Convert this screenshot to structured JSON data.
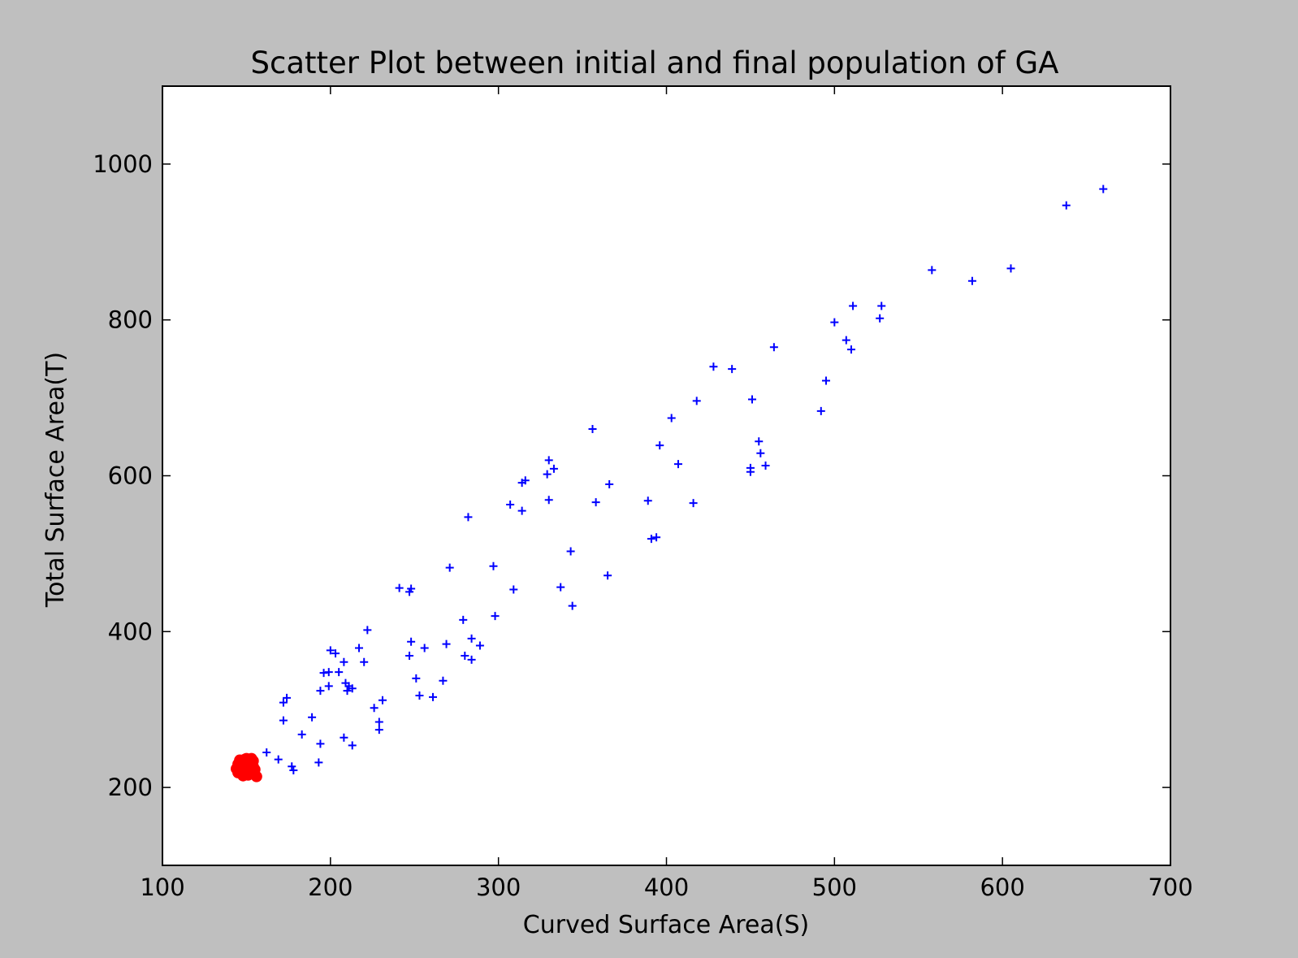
{
  "chart_data": {
    "type": "scatter",
    "title": "Scatter Plot between initial and final population of GA",
    "xlabel": "Curved Surface Area(S)",
    "ylabel": "Total Surface Area(T)",
    "xlim": [
      100,
      700
    ],
    "ylim": [
      100,
      1100
    ],
    "xticks": [
      100,
      200,
      300,
      400,
      500,
      600,
      700
    ],
    "yticks": [
      200,
      400,
      600,
      800,
      1000
    ],
    "xtick_labels": [
      "100",
      "200",
      "300",
      "400",
      "500",
      "600",
      "700"
    ],
    "ytick_labels": [
      "200",
      "400",
      "600",
      "800",
      "1000"
    ],
    "grid": false,
    "series": [
      {
        "marker": "plus",
        "color": "#0000ff",
        "points": [
          [
            660,
            968
          ],
          [
            638,
            947
          ],
          [
            605,
            866
          ],
          [
            582,
            850
          ],
          [
            558,
            864
          ],
          [
            528,
            818
          ],
          [
            527,
            802
          ],
          [
            511,
            818
          ],
          [
            510,
            762
          ],
          [
            507,
            774
          ],
          [
            500,
            797
          ],
          [
            495,
            722
          ],
          [
            492,
            683
          ],
          [
            464,
            765
          ],
          [
            459,
            613
          ],
          [
            456,
            629
          ],
          [
            455,
            644
          ],
          [
            451,
            698
          ],
          [
            450,
            610
          ],
          [
            450,
            605
          ],
          [
            439,
            737
          ],
          [
            428,
            740
          ],
          [
            418,
            696
          ],
          [
            416,
            565
          ],
          [
            407,
            615
          ],
          [
            403,
            674
          ],
          [
            396,
            639
          ],
          [
            394,
            521
          ],
          [
            391,
            519
          ],
          [
            389,
            568
          ],
          [
            366,
            589
          ],
          [
            365,
            472
          ],
          [
            358,
            566
          ],
          [
            356,
            660
          ],
          [
            344,
            433
          ],
          [
            343,
            503
          ],
          [
            337,
            457
          ],
          [
            333,
            609
          ],
          [
            330,
            620
          ],
          [
            330,
            569
          ],
          [
            329,
            602
          ],
          [
            316,
            594
          ],
          [
            314,
            591
          ],
          [
            314,
            555
          ],
          [
            309,
            454
          ],
          [
            307,
            563
          ],
          [
            298,
            420
          ],
          [
            297,
            484
          ],
          [
            289,
            382
          ],
          [
            284,
            391
          ],
          [
            284,
            364
          ],
          [
            282,
            547
          ],
          [
            280,
            369
          ],
          [
            279,
            415
          ],
          [
            271,
            482
          ],
          [
            269,
            384
          ],
          [
            267,
            337
          ],
          [
            261,
            316
          ],
          [
            256,
            379
          ],
          [
            253,
            318
          ],
          [
            251,
            340
          ],
          [
            248,
            387
          ],
          [
            248,
            455
          ],
          [
            247,
            369
          ],
          [
            247,
            451
          ],
          [
            241,
            456
          ],
          [
            231,
            312
          ],
          [
            229,
            284
          ],
          [
            229,
            274
          ],
          [
            226,
            302
          ],
          [
            222,
            402
          ],
          [
            220,
            361
          ],
          [
            217,
            379
          ],
          [
            213,
            327
          ],
          [
            213,
            254
          ],
          [
            211,
            330
          ],
          [
            210,
            324
          ],
          [
            209,
            334
          ],
          [
            208,
            264
          ],
          [
            208,
            361
          ],
          [
            205,
            348
          ],
          [
            203,
            372
          ],
          [
            200,
            376
          ],
          [
            199,
            330
          ],
          [
            199,
            348
          ],
          [
            196,
            347
          ],
          [
            194,
            324
          ],
          [
            194,
            256
          ],
          [
            193,
            232
          ],
          [
            189,
            290
          ],
          [
            183,
            268
          ],
          [
            178,
            222
          ],
          [
            177,
            227
          ],
          [
            174,
            315
          ],
          [
            172,
            309
          ],
          [
            172,
            286
          ],
          [
            169,
            236
          ],
          [
            162,
            245
          ]
        ]
      },
      {
        "marker": "circle",
        "color": "#ff0000",
        "points": [
          [
            144,
            224
          ],
          [
            145,
            219
          ],
          [
            145,
            230
          ],
          [
            146,
            226
          ],
          [
            146,
            235
          ],
          [
            147,
            221
          ],
          [
            147,
            228
          ],
          [
            148,
            232
          ],
          [
            148,
            218
          ],
          [
            149,
            225
          ],
          [
            149,
            236
          ],
          [
            150,
            222
          ],
          [
            150,
            229
          ],
          [
            151,
            233
          ],
          [
            151,
            219
          ],
          [
            152,
            226
          ],
          [
            152,
            236
          ],
          [
            153,
            222
          ],
          [
            153,
            230
          ],
          [
            154,
            234
          ],
          [
            154,
            227
          ],
          [
            155,
            223
          ],
          [
            156,
            214
          ],
          [
            148,
            215
          ],
          [
            151,
            216
          ],
          [
            146,
            233
          ],
          [
            153,
            237
          ],
          [
            150,
            237
          ]
        ]
      }
    ]
  }
}
